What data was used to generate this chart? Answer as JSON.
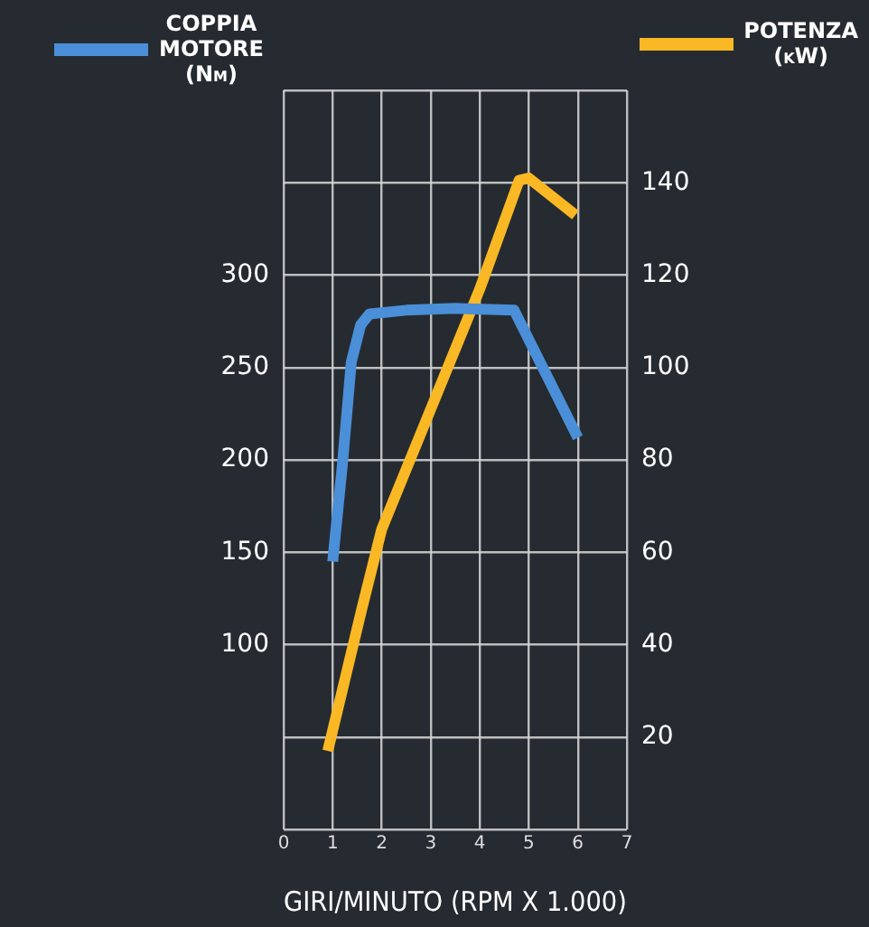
{
  "chart_data": {
    "type": "line",
    "xlabel": "GIRI/MINUTO (RPM X 1.000)",
    "xlim": [
      0,
      7
    ],
    "xticks": [
      0,
      1,
      2,
      3,
      4,
      5,
      6,
      7
    ],
    "ylim": [
      0,
      400
    ],
    "yticks": [
      {
        "value": 0,
        "label": null
      },
      {
        "value": 50,
        "label": null
      },
      100,
      150,
      200,
      250,
      300,
      {
        "value": 350,
        "label": null
      },
      {
        "value": 400,
        "label": null
      }
    ],
    "y2lim": [
      0,
      160
    ],
    "y2ticks": [
      20,
      40,
      60,
      80,
      100,
      120,
      140
    ],
    "grid": true,
    "legend": "top",
    "marker": "none",
    "line_style": "solid",
    "series": [
      {
        "name": "COPPIA MOTORE (Nm)",
        "color": "#4a8fd8",
        "x": [
          1,
          1.2,
          1.38,
          1.57,
          1.75,
          2.5,
          3.5,
          4.7,
          6
        ],
        "values": [
          145,
          198,
          253,
          273,
          279,
          281,
          282,
          281,
          212
        ]
      },
      {
        "name": "POTENZA (kW)",
        "color": "#f9b824",
        "axis": "y2",
        "x": [
          0.9,
          1.6,
          2,
          3,
          4,
          4.8,
          5,
          5.95
        ],
        "values": [
          17,
          48,
          65,
          91,
          117,
          140.5,
          141,
          133
        ]
      }
    ]
  }
}
